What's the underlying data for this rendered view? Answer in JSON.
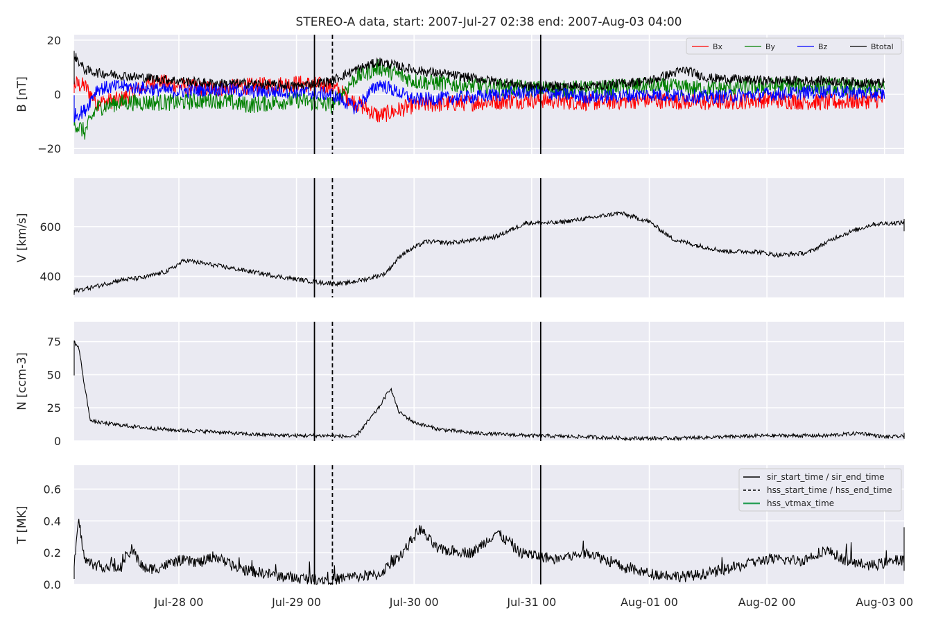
{
  "figure": {
    "title": "STEREO-A data, start: 2007-Jul-27 02:38  end: 2007-Aug-03 04:00",
    "colors": {
      "panel_bg": "#EAEAF2",
      "grid": "#FFFFFF",
      "bx": "#FF0000",
      "by": "#008000",
      "bz": "#0000FF",
      "btotal": "#000000",
      "event_line": "#000000",
      "hss_vtmax": "#2CA05A"
    }
  },
  "chart_data": [
    {
      "type": "line",
      "ylabel": "B [nT]",
      "ylim": [
        -22,
        22
      ],
      "yticks": [
        20,
        0,
        -20
      ],
      "ytick_labels": [
        "20",
        "0",
        "−20"
      ],
      "legend": {
        "position": "top-right",
        "entries": [
          "Bx",
          "By",
          "Bz",
          "Btotal"
        ]
      },
      "series": [
        {
          "name": "Bx",
          "points": [
            [
              0.0,
              2
            ],
            [
              0.1,
              4
            ],
            [
              0.2,
              3
            ],
            [
              0.3,
              -3
            ],
            [
              0.5,
              -2
            ],
            [
              0.8,
              5
            ],
            [
              1.0,
              3
            ],
            [
              1.3,
              2
            ],
            [
              1.6,
              3
            ],
            [
              2.0,
              4
            ],
            [
              2.3,
              3
            ],
            [
              2.5,
              -3
            ],
            [
              2.7,
              -8
            ],
            [
              3.0,
              -4
            ],
            [
              3.5,
              -3
            ],
            [
              4.0,
              -2
            ],
            [
              4.5,
              -3
            ],
            [
              5.0,
              -2
            ],
            [
              5.5,
              -3
            ],
            [
              6.0,
              -2
            ],
            [
              6.5,
              -3
            ],
            [
              7.0,
              -2
            ]
          ]
        },
        {
          "name": "By",
          "points": [
            [
              0.0,
              -2
            ],
            [
              0.1,
              -10
            ],
            [
              0.2,
              -14
            ],
            [
              0.3,
              -5
            ],
            [
              0.5,
              -3
            ],
            [
              1.0,
              -3
            ],
            [
              1.3,
              -2
            ],
            [
              1.6,
              -4
            ],
            [
              2.0,
              -2
            ],
            [
              2.3,
              -4
            ],
            [
              2.5,
              6
            ],
            [
              2.7,
              10
            ],
            [
              3.0,
              5
            ],
            [
              3.5,
              3
            ],
            [
              4.0,
              2
            ],
            [
              4.5,
              2
            ],
            [
              5.0,
              3
            ],
            [
              5.5,
              2
            ],
            [
              6.0,
              3
            ],
            [
              6.5,
              3
            ],
            [
              7.0,
              2
            ]
          ]
        },
        {
          "name": "Bz",
          "points": [
            [
              0.0,
              -1
            ],
            [
              0.1,
              -8
            ],
            [
              0.2,
              -6
            ],
            [
              0.3,
              2
            ],
            [
              0.5,
              3
            ],
            [
              1.0,
              1
            ],
            [
              1.3,
              2
            ],
            [
              1.6,
              1
            ],
            [
              2.0,
              1
            ],
            [
              2.3,
              0
            ],
            [
              2.5,
              -5
            ],
            [
              2.7,
              4
            ],
            [
              3.0,
              -2
            ],
            [
              3.5,
              -1
            ],
            [
              4.0,
              1
            ],
            [
              4.5,
              -1
            ],
            [
              5.0,
              0
            ],
            [
              5.5,
              -1
            ],
            [
              6.0,
              0
            ],
            [
              6.5,
              1
            ],
            [
              7.0,
              0
            ]
          ]
        },
        {
          "name": "Btotal",
          "points": [
            [
              0.0,
              5
            ],
            [
              0.1,
              15
            ],
            [
              0.2,
              9
            ],
            [
              0.3,
              8
            ],
            [
              0.5,
              7
            ],
            [
              1.0,
              5
            ],
            [
              1.3,
              4
            ],
            [
              1.6,
              4
            ],
            [
              2.0,
              3
            ],
            [
              2.3,
              5
            ],
            [
              2.5,
              9
            ],
            [
              2.7,
              12
            ],
            [
              3.0,
              9
            ],
            [
              3.5,
              6
            ],
            [
              4.0,
              3
            ],
            [
              4.5,
              3
            ],
            [
              5.0,
              5
            ],
            [
              5.3,
              9
            ],
            [
              5.5,
              6
            ],
            [
              6.0,
              5
            ],
            [
              6.5,
              5
            ],
            [
              7.0,
              4
            ]
          ]
        }
      ]
    },
    {
      "type": "line",
      "ylabel": "V [km/s]",
      "ylim": [
        315,
        795
      ],
      "yticks": [
        600,
        400
      ],
      "series": [
        {
          "name": "",
          "points": [
            [
              0.0,
              330
            ],
            [
              0.3,
              360
            ],
            [
              0.5,
              385
            ],
            [
              0.7,
              395
            ],
            [
              0.9,
              420
            ],
            [
              1.05,
              465
            ],
            [
              1.3,
              445
            ],
            [
              1.6,
              420
            ],
            [
              1.9,
              395
            ],
            [
              2.2,
              375
            ],
            [
              2.4,
              370
            ],
            [
              2.6,
              390
            ],
            [
              2.75,
              410
            ],
            [
              2.9,
              490
            ],
            [
              3.1,
              540
            ],
            [
              3.3,
              535
            ],
            [
              3.5,
              545
            ],
            [
              3.7,
              560
            ],
            [
              3.95,
              615
            ],
            [
              4.2,
              615
            ],
            [
              4.5,
              635
            ],
            [
              4.75,
              655
            ],
            [
              5.0,
              620
            ],
            [
              5.2,
              550
            ],
            [
              5.4,
              525
            ],
            [
              5.65,
              500
            ],
            [
              5.9,
              500
            ],
            [
              6.1,
              485
            ],
            [
              6.35,
              495
            ],
            [
              6.6,
              560
            ],
            [
              6.9,
              610
            ],
            [
              7.1,
              615
            ],
            [
              7.4,
              625
            ],
            [
              7.65,
              610
            ],
            [
              7.9,
              595
            ],
            [
              8.05,
              590
            ]
          ]
        }
      ]
    },
    {
      "type": "line",
      "ylabel": "N [ccm-3]",
      "ylim": [
        0,
        90
      ],
      "yticks": [
        75,
        50,
        25,
        0
      ],
      "series": [
        {
          "name": "",
          "points": [
            [
              0.0,
              50
            ],
            [
              0.05,
              72
            ],
            [
              0.1,
              76
            ],
            [
              0.15,
              70
            ],
            [
              0.2,
              40
            ],
            [
              0.25,
              15
            ],
            [
              0.4,
              13
            ],
            [
              0.7,
              10
            ],
            [
              1.0,
              8
            ],
            [
              1.3,
              7
            ],
            [
              1.6,
              5
            ],
            [
              2.0,
              4
            ],
            [
              2.3,
              4
            ],
            [
              2.5,
              3
            ],
            [
              2.7,
              25
            ],
            [
              2.8,
              40
            ],
            [
              2.87,
              22
            ],
            [
              3.0,
              14
            ],
            [
              3.2,
              9
            ],
            [
              3.5,
              6
            ],
            [
              4.0,
              4
            ],
            [
              4.5,
              3
            ],
            [
              4.8,
              2
            ],
            [
              5.2,
              2
            ],
            [
              5.6,
              3
            ],
            [
              6.0,
              4
            ],
            [
              6.5,
              4
            ],
            [
              6.8,
              6
            ],
            [
              7.0,
              3
            ],
            [
              7.4,
              4
            ],
            [
              7.7,
              5
            ],
            [
              7.9,
              3
            ],
            [
              8.05,
              3
            ]
          ]
        }
      ]
    },
    {
      "type": "line",
      "ylabel": "T [MK]",
      "ylim": [
        0,
        0.75
      ],
      "yticks": [
        0.6,
        0.4,
        0.2,
        0.0
      ],
      "ytick_labels": [
        "0.6",
        "0.4",
        "0.2",
        "0.0"
      ],
      "legend": {
        "position": "top-right",
        "entries": [
          "sir_start_time / sir_end_time",
          "hss_start_time / hss_end_time",
          "hss_vtmax_time"
        ]
      },
      "series": [
        {
          "name": "",
          "points": [
            [
              0.0,
              0.05
            ],
            [
              0.1,
              0.08
            ],
            [
              0.15,
              0.4
            ],
            [
              0.2,
              0.15
            ],
            [
              0.3,
              0.12
            ],
            [
              0.5,
              0.1
            ],
            [
              0.6,
              0.22
            ],
            [
              0.7,
              0.1
            ],
            [
              0.8,
              0.1
            ],
            [
              1.0,
              0.15
            ],
            [
              1.2,
              0.14
            ],
            [
              1.3,
              0.18
            ],
            [
              1.5,
              0.1
            ],
            [
              1.8,
              0.06
            ],
            [
              2.0,
              0.04
            ],
            [
              2.3,
              0.03
            ],
            [
              2.5,
              0.05
            ],
            [
              2.7,
              0.06
            ],
            [
              2.9,
              0.2
            ],
            [
              3.05,
              0.35
            ],
            [
              3.2,
              0.22
            ],
            [
              3.5,
              0.2
            ],
            [
              3.7,
              0.33
            ],
            [
              3.9,
              0.2
            ],
            [
              4.2,
              0.16
            ],
            [
              4.5,
              0.2
            ],
            [
              4.8,
              0.1
            ],
            [
              5.0,
              0.07
            ],
            [
              5.3,
              0.05
            ],
            [
              5.5,
              0.07
            ],
            [
              5.8,
              0.12
            ],
            [
              6.0,
              0.16
            ],
            [
              6.3,
              0.15
            ],
            [
              6.5,
              0.22
            ],
            [
              6.7,
              0.14
            ],
            [
              6.9,
              0.12
            ],
            [
              7.1,
              0.15
            ],
            [
              7.3,
              0.17
            ],
            [
              7.4,
              0.3
            ],
            [
              7.55,
              0.2
            ],
            [
              7.7,
              0.15
            ],
            [
              7.9,
              0.12
            ],
            [
              8.05,
              0.12
            ]
          ]
        }
      ]
    }
  ],
  "x_axis": {
    "start": "2007-Jul-27 02:38",
    "end": "2007-Aug-03 04:00",
    "ticks": [
      "Jul-28 00",
      "Jul-29 00",
      "Jul-30 00",
      "Jul-31 00",
      "Aug-01 00",
      "Aug-02 00",
      "Aug-03 00"
    ]
  },
  "events": {
    "sir_start_time": "2007-Jul-29 03:40",
    "hss_start_time": "2007-Jul-29 07:20",
    "sir_end_time": "2007-Jul-31 01:50"
  }
}
